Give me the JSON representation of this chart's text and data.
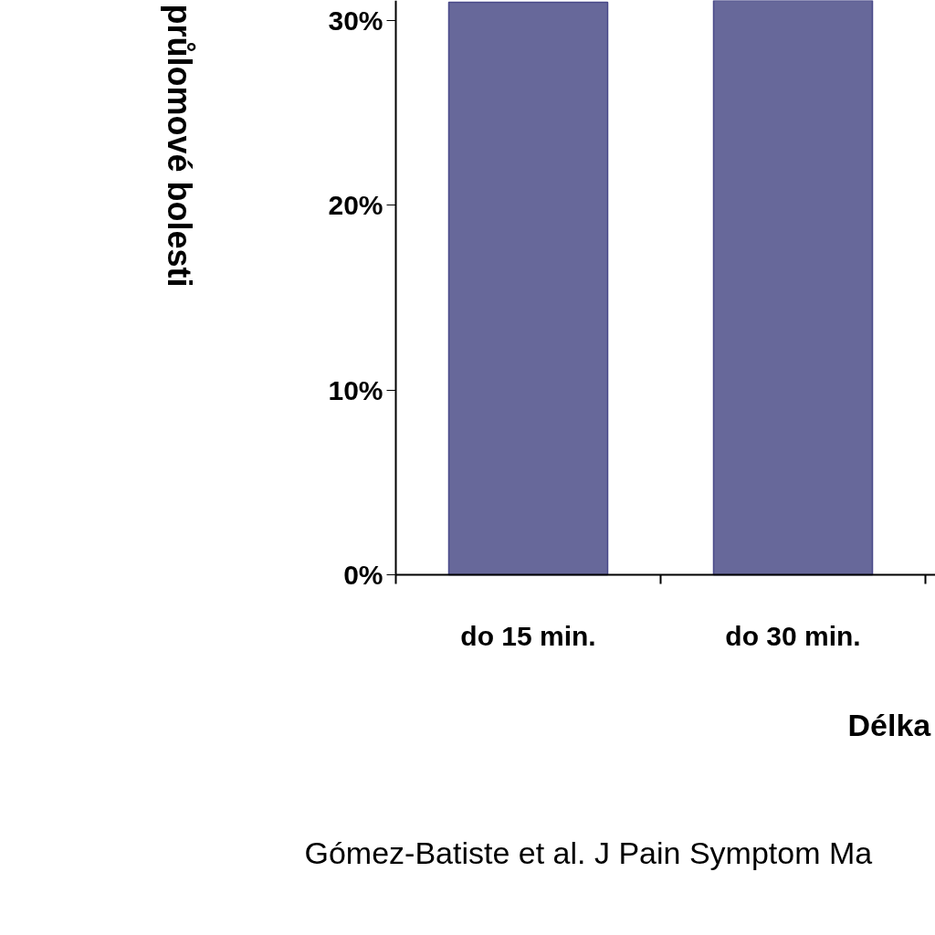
{
  "chart_data": {
    "type": "bar",
    "xlabel": "Délka",
    "ylabel": "průlomové bolesti",
    "categories": [
      "do 15 min.",
      "do 30 min."
    ],
    "values": [
      31.0,
      31.1
    ],
    "color": "#67689a",
    "ylim": [
      0,
      31.1
    ],
    "yticks": [
      {
        "value": 0,
        "label": "0%"
      },
      {
        "value": 10,
        "label": "10%"
      },
      {
        "value": 20,
        "label": "20%"
      },
      {
        "value": 30,
        "label": "30%"
      }
    ],
    "grid": false,
    "annotations": [
      "Gómez-Batiste et al. J Pain Symptom Ma"
    ]
  }
}
